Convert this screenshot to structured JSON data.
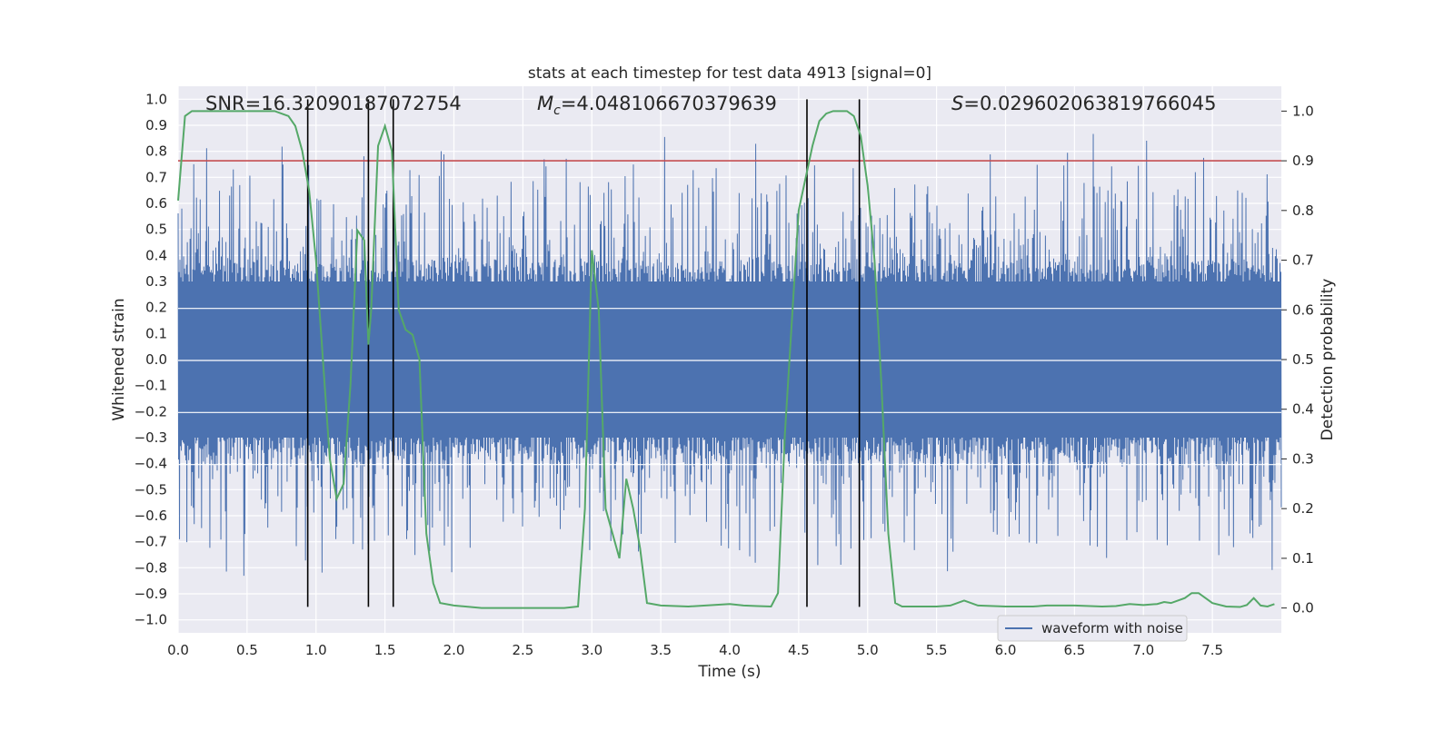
{
  "chart_data": {
    "type": "line",
    "title": "stats at each timestep for test data 4913 [signal=0]",
    "xlabel": "Time (s)",
    "ylabel_left": "Whitened strain",
    "ylabel_right": "Detection probability",
    "xlim": [
      0.0,
      8.0
    ],
    "ylim_left": [
      -1.05,
      1.05
    ],
    "ylim_right": [
      -0.05,
      1.05
    ],
    "x_ticks": [
      0.0,
      0.5,
      1.0,
      1.5,
      2.0,
      2.5,
      3.0,
      3.5,
      4.0,
      4.5,
      5.0,
      5.5,
      6.0,
      6.5,
      7.0,
      7.5
    ],
    "x_tick_labels": [
      "0.0",
      "0.5",
      "1.0",
      "1.5",
      "2.0",
      "2.5",
      "3.0",
      "3.5",
      "4.0",
      "4.5",
      "5.0",
      "5.5",
      "6.0",
      "6.5",
      "7.0",
      "7.5"
    ],
    "y_left_ticks": [
      1.0,
      0.9,
      0.8,
      0.7,
      0.6,
      0.5,
      0.4,
      0.3,
      0.2,
      0.1,
      0.0,
      -0.1,
      -0.2,
      -0.3,
      -0.4,
      -0.5,
      -0.6,
      -0.7,
      -0.8,
      -0.9,
      -1.0
    ],
    "y_left_tick_labels": [
      "1.0",
      "0.9",
      "0.8",
      "0.7",
      "0.6",
      "0.5",
      "0.4",
      "0.3",
      "0.2",
      "0.1",
      "0.0",
      "−0.1",
      "−0.2",
      "−0.3",
      "−0.4",
      "−0.5",
      "−0.6",
      "−0.7",
      "−0.8",
      "−0.9",
      "−1.0"
    ],
    "y_right_ticks": [
      1.0,
      0.9,
      0.8,
      0.7,
      0.6,
      0.5,
      0.4,
      0.3,
      0.2,
      0.1,
      0.0
    ],
    "y_right_tick_labels": [
      "1.0",
      "0.9",
      "0.8",
      "0.7",
      "0.6",
      "0.5",
      "0.4",
      "0.3",
      "0.2",
      "0.1",
      "0.0"
    ],
    "grid": true,
    "annotations": {
      "snr": "SNR=16.32090187072754",
      "mc": "=4.048106670379639",
      "mc_symbol": "M",
      "mc_subscript": "c",
      "s": "=0.029602063819766045",
      "s_symbol": "S"
    },
    "legend": {
      "placement": "lower-right",
      "entries": [
        "waveform with noise"
      ]
    },
    "threshold_line": {
      "y_right": 0.9,
      "color": "#c44e52"
    },
    "vertical_lines": [
      0.94,
      1.38,
      1.56,
      4.56,
      4.94
    ],
    "series": [
      {
        "name": "waveform with noise",
        "axis": "left",
        "color": "#4c72b0",
        "kind": "noise-band",
        "x_range": [
          0.0,
          8.0
        ],
        "approx_peak_abs": 1.0,
        "typical_upper": 0.4,
        "typical_lower": -0.4
      },
      {
        "axis": "right",
        "color": "#55a868",
        "x": [
          0.0,
          0.05,
          0.1,
          0.2,
          0.3,
          0.4,
          0.5,
          0.6,
          0.7,
          0.8,
          0.85,
          0.9,
          0.95,
          1.0,
          1.05,
          1.1,
          1.15,
          1.2,
          1.25,
          1.3,
          1.35,
          1.38,
          1.4,
          1.45,
          1.5,
          1.55,
          1.6,
          1.65,
          1.7,
          1.75,
          1.8,
          1.85,
          1.9,
          2.0,
          2.2,
          2.5,
          2.8,
          2.9,
          2.95,
          3.0,
          3.05,
          3.1,
          3.15,
          3.2,
          3.25,
          3.3,
          3.35,
          3.4,
          3.5,
          3.7,
          4.0,
          4.1,
          4.2,
          4.3,
          4.35,
          4.4,
          4.5,
          4.6,
          4.65,
          4.7,
          4.75,
          4.8,
          4.85,
          4.9,
          4.95,
          5.0,
          5.05,
          5.1,
          5.15,
          5.2,
          5.25,
          5.5,
          5.6,
          5.7,
          5.8,
          6.0,
          6.2,
          6.3,
          6.5,
          6.7,
          6.8,
          6.9,
          7.0,
          7.1,
          7.15,
          7.2,
          7.25,
          7.3,
          7.35,
          7.4,
          7.45,
          7.5,
          7.6,
          7.7,
          7.75,
          7.8,
          7.85,
          7.9,
          7.95
        ],
        "y": [
          0.82,
          0.99,
          1.0,
          1.0,
          1.0,
          1.0,
          1.0,
          1.0,
          1.0,
          0.99,
          0.97,
          0.92,
          0.84,
          0.7,
          0.5,
          0.3,
          0.22,
          0.25,
          0.45,
          0.76,
          0.74,
          0.53,
          0.6,
          0.93,
          0.97,
          0.92,
          0.6,
          0.56,
          0.55,
          0.5,
          0.15,
          0.05,
          0.01,
          0.005,
          0.0,
          0.0,
          0.0,
          0.003,
          0.2,
          0.72,
          0.6,
          0.2,
          0.15,
          0.1,
          0.26,
          0.2,
          0.12,
          0.01,
          0.005,
          0.003,
          0.008,
          0.005,
          0.004,
          0.003,
          0.03,
          0.35,
          0.8,
          0.93,
          0.98,
          0.995,
          1.0,
          1.0,
          1.0,
          0.99,
          0.95,
          0.85,
          0.7,
          0.45,
          0.15,
          0.01,
          0.003,
          0.003,
          0.005,
          0.015,
          0.005,
          0.003,
          0.003,
          0.005,
          0.005,
          0.003,
          0.004,
          0.008,
          0.006,
          0.008,
          0.012,
          0.01,
          0.015,
          0.02,
          0.03,
          0.03,
          0.02,
          0.01,
          0.003,
          0.002,
          0.006,
          0.02,
          0.005,
          0.003,
          0.008
        ]
      }
    ]
  }
}
